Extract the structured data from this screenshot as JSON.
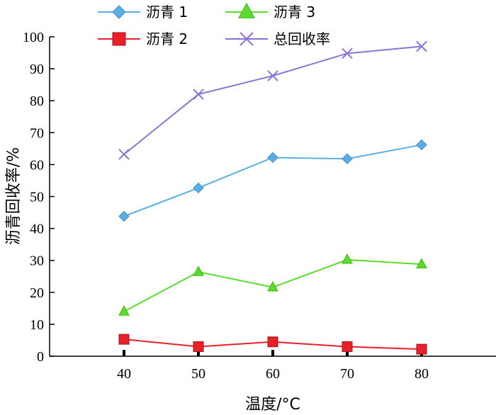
{
  "chart_data": {
    "type": "line",
    "title": "",
    "xlabel": "温度/°C",
    "ylabel": "沥青回收率/%",
    "x": [
      40,
      50,
      60,
      70,
      80
    ],
    "xlim": [
      30,
      90
    ],
    "ylim": [
      0,
      100
    ],
    "yticks": [
      0,
      10,
      20,
      30,
      40,
      50,
      60,
      70,
      80,
      90,
      100
    ],
    "grid": false,
    "legend_position": "top",
    "series": [
      {
        "name": "沥青 1",
        "color": "#5aaee6",
        "marker": "diamond",
        "values": [
          43.8,
          52.7,
          62.2,
          61.8,
          66.2
        ]
      },
      {
        "name": "沥青 2",
        "color": "#e8202a",
        "marker": "square",
        "values": [
          5.3,
          3.0,
          4.5,
          3.0,
          2.2
        ]
      },
      {
        "name": "沥青 3",
        "color": "#5adc2a",
        "marker": "triangle",
        "values": [
          14.0,
          26.4,
          21.6,
          30.2,
          28.8
        ]
      },
      {
        "name": "总回收率",
        "color": "#8a72d8",
        "marker": "x",
        "values": [
          63.2,
          82.0,
          87.8,
          94.8,
          97.0
        ]
      }
    ]
  }
}
